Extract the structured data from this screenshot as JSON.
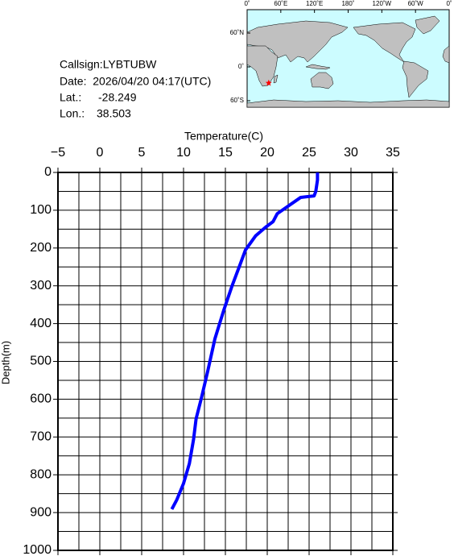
{
  "info": {
    "callsign": "Callsign:LYBTUBW",
    "date": "Date:  2026/04/20 04:17(UTC)",
    "lat_label": "Lat.:",
    "lat": -28.249,
    "lon_label": "Lon.:",
    "lon": 38.503
  },
  "map": {
    "lon_ticks": [
      {
        "value": 0,
        "label": "0˚"
      },
      {
        "value": 60,
        "label": "60˚E"
      },
      {
        "value": 120,
        "label": "120˚E"
      },
      {
        "value": 180,
        "label": "180˚"
      },
      {
        "value": 240,
        "label": "120˚W"
      },
      {
        "value": 300,
        "label": "60˚W"
      },
      {
        "value": 360,
        "label": "0˚"
      }
    ],
    "lat_ticks": [
      {
        "value": 60,
        "label": "60˚N"
      },
      {
        "value": 0,
        "label": "0˚"
      },
      {
        "value": -60,
        "label": "60˚S"
      }
    ],
    "marker_color": "#ff0000"
  },
  "chart_data": {
    "type": "line",
    "x_label": "Temperature(C)",
    "y_label": "Depth(m)",
    "color": "#0000ff",
    "x": [
      26.0,
      26.0,
      25.8,
      25.6,
      24.0,
      21.2,
      20.7,
      19.8,
      18.6,
      17.4,
      16.7,
      15.8,
      14.8,
      13.75,
      12.9,
      12.1,
      11.5,
      11.2,
      10.7,
      10.0,
      9.2,
      8.6
    ],
    "values": [
      0,
      20,
      50,
      62,
      66,
      109,
      130,
      145,
      168,
      205,
      247,
      300,
      365,
      440,
      525,
      600,
      652,
      706,
      770,
      823,
      866,
      891
    ],
    "xlim": [
      -5,
      35
    ],
    "xticks": [
      {
        "value": -5,
        "label": "−5"
      },
      0,
      5,
      10,
      15,
      20,
      25,
      30,
      35
    ],
    "xgrid": [
      -2.5,
      2.5,
      7.5,
      12.5,
      17.5,
      22.5,
      27.5,
      32.5
    ],
    "ylim": [
      0,
      1000
    ],
    "y_inverted": true,
    "yticks": [
      0,
      100,
      200,
      300,
      400,
      500,
      600,
      700,
      800,
      900,
      1000
    ],
    "ygrid": [
      50,
      150,
      250,
      350,
      450,
      550,
      650,
      750,
      850,
      950
    ],
    "grid": true
  }
}
